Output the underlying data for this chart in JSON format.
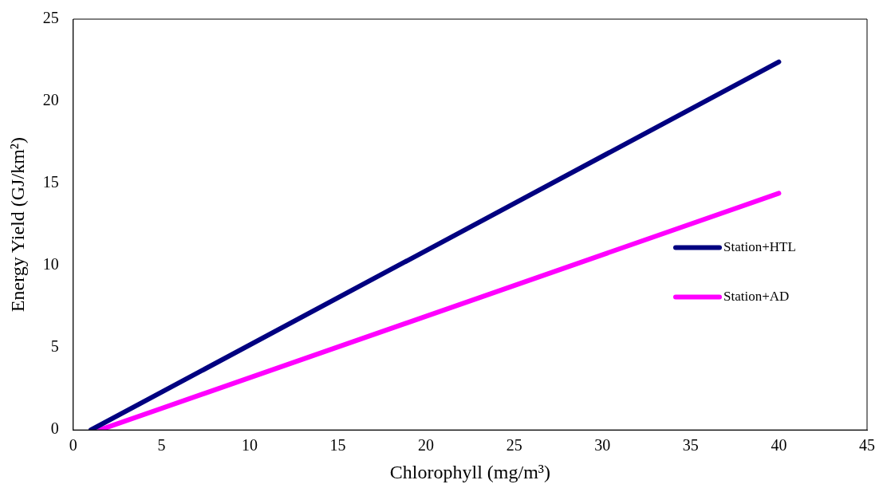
{
  "chart_data": {
    "type": "line",
    "xlabel": "Chlorophyll (mg/m³)",
    "ylabel": "Energy Yield (GJ/km²)",
    "xlim": [
      0,
      45
    ],
    "xticks": [
      0,
      5,
      10,
      15,
      20,
      25,
      30,
      35,
      40,
      45
    ],
    "ylim": [
      0,
      25
    ],
    "yticks": [
      0,
      5,
      10,
      15,
      20,
      25
    ],
    "grid": false,
    "legend": "right",
    "marker": "none",
    "line_style": "solid",
    "series": [
      {
        "name": "Station+HTL",
        "color": "#000080",
        "x": [
          1,
          40
        ],
        "values": [
          0,
          22.4
        ]
      },
      {
        "name": "Station+AD",
        "color": "#ff00ff",
        "x": [
          1.5,
          40
        ],
        "values": [
          0,
          14.4
        ]
      }
    ]
  }
}
